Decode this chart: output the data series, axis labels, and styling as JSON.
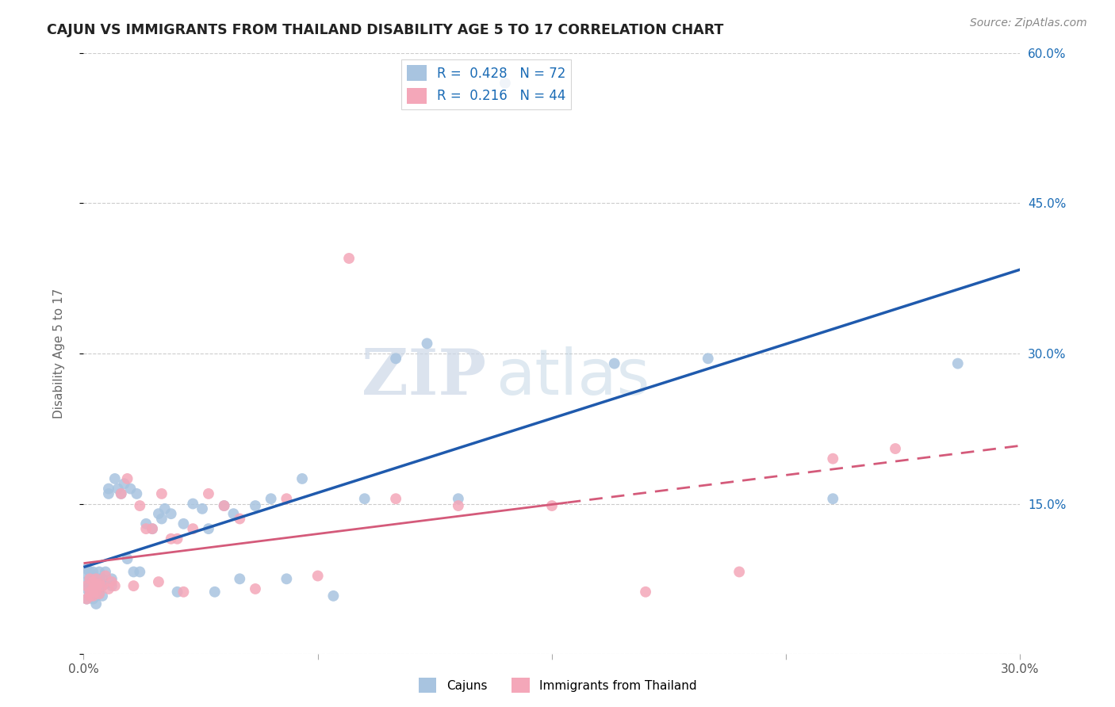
{
  "title": "CAJUN VS IMMIGRANTS FROM THAILAND DISABILITY AGE 5 TO 17 CORRELATION CHART",
  "source": "Source: ZipAtlas.com",
  "ylabel": "Disability Age 5 to 17",
  "xlim": [
    0.0,
    0.3
  ],
  "ylim": [
    0.0,
    0.6
  ],
  "cajun_R": 0.428,
  "cajun_N": 72,
  "thailand_R": 0.216,
  "thailand_N": 44,
  "cajun_color": "#a8c4e0",
  "cajun_line_color": "#1f5aad",
  "thailand_color": "#f4a7b9",
  "thailand_line_color": "#d45a7a",
  "legend_label1": "Cajuns",
  "legend_label2": "Immigrants from Thailand",
  "watermark_zip": "ZIP",
  "watermark_atlas": "atlas",
  "cajun_x": [
    0.001,
    0.001,
    0.001,
    0.001,
    0.001,
    0.002,
    0.002,
    0.002,
    0.002,
    0.002,
    0.002,
    0.003,
    0.003,
    0.003,
    0.003,
    0.003,
    0.004,
    0.004,
    0.004,
    0.004,
    0.004,
    0.005,
    0.005,
    0.005,
    0.005,
    0.006,
    0.006,
    0.006,
    0.007,
    0.007,
    0.008,
    0.008,
    0.009,
    0.009,
    0.01,
    0.011,
    0.012,
    0.013,
    0.014,
    0.015,
    0.016,
    0.017,
    0.018,
    0.02,
    0.022,
    0.024,
    0.025,
    0.026,
    0.028,
    0.03,
    0.032,
    0.035,
    0.038,
    0.04,
    0.042,
    0.045,
    0.048,
    0.05,
    0.055,
    0.06,
    0.065,
    0.07,
    0.08,
    0.09,
    0.1,
    0.11,
    0.12,
    0.135,
    0.17,
    0.2,
    0.24,
    0.28
  ],
  "cajun_y": [
    0.072,
    0.065,
    0.08,
    0.055,
    0.085,
    0.068,
    0.058,
    0.075,
    0.082,
    0.065,
    0.06,
    0.07,
    0.078,
    0.062,
    0.055,
    0.082,
    0.065,
    0.072,
    0.058,
    0.068,
    0.05,
    0.065,
    0.075,
    0.082,
    0.06,
    0.068,
    0.058,
    0.075,
    0.07,
    0.082,
    0.16,
    0.165,
    0.075,
    0.068,
    0.175,
    0.165,
    0.16,
    0.17,
    0.095,
    0.165,
    0.082,
    0.16,
    0.082,
    0.13,
    0.125,
    0.14,
    0.135,
    0.145,
    0.14,
    0.062,
    0.13,
    0.15,
    0.145,
    0.125,
    0.062,
    0.148,
    0.14,
    0.075,
    0.148,
    0.155,
    0.075,
    0.175,
    0.058,
    0.155,
    0.295,
    0.31,
    0.155,
    0.57,
    0.29,
    0.295,
    0.155,
    0.29
  ],
  "thailand_x": [
    0.001,
    0.001,
    0.002,
    0.002,
    0.002,
    0.003,
    0.003,
    0.003,
    0.004,
    0.004,
    0.004,
    0.005,
    0.005,
    0.006,
    0.007,
    0.008,
    0.009,
    0.01,
    0.012,
    0.014,
    0.016,
    0.018,
    0.02,
    0.022,
    0.024,
    0.025,
    0.028,
    0.03,
    0.032,
    0.035,
    0.04,
    0.045,
    0.05,
    0.055,
    0.065,
    0.075,
    0.085,
    0.1,
    0.12,
    0.15,
    0.18,
    0.21,
    0.24,
    0.26
  ],
  "thailand_y": [
    0.068,
    0.055,
    0.062,
    0.075,
    0.058,
    0.065,
    0.072,
    0.058,
    0.068,
    0.062,
    0.075,
    0.06,
    0.07,
    0.068,
    0.078,
    0.065,
    0.072,
    0.068,
    0.16,
    0.175,
    0.068,
    0.148,
    0.125,
    0.125,
    0.072,
    0.16,
    0.115,
    0.115,
    0.062,
    0.125,
    0.16,
    0.148,
    0.135,
    0.065,
    0.155,
    0.078,
    0.395,
    0.155,
    0.148,
    0.148,
    0.062,
    0.082,
    0.195,
    0.205
  ]
}
